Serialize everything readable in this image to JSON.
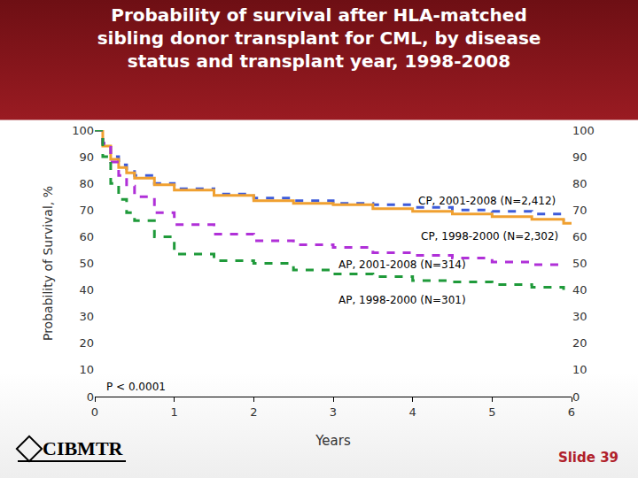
{
  "chart_data": {
    "type": "line",
    "title": "Probability of survival after HLA-matched\nsibling donor transplant for CML, by disease\nstatus and transplant year, 1998-2008",
    "x_label": "Years",
    "y_label": "Probability of Survival, %",
    "x": [
      0,
      0.1,
      0.2,
      0.3,
      0.4,
      0.5,
      0.75,
      1,
      1.5,
      2,
      2.5,
      3,
      3.5,
      4,
      4.5,
      5,
      5.5,
      5.9,
      6
    ],
    "series": [
      {
        "name": "CP, 2001-2008 (N=2,412)",
        "color": "#3d5bd9",
        "line_style": "dash",
        "values": [
          100,
          95,
          90,
          87,
          85,
          83,
          80,
          78,
          76,
          74.5,
          73.5,
          72.5,
          72,
          71,
          70,
          69.5,
          68.5,
          66,
          null
        ]
      },
      {
        "name": "CP, 1998-2000 (N=2,302)",
        "color": "#f0a030",
        "line_style": "solid",
        "values": [
          100,
          94,
          89,
          86,
          84,
          82,
          79.5,
          77.5,
          75.5,
          73.5,
          72.5,
          72,
          70.5,
          69.5,
          68.5,
          67.5,
          66.5,
          65,
          64.5
        ]
      },
      {
        "name": "AP, 2001-2008 (N=314)",
        "color": "#b030d8",
        "line_style": "dash",
        "values": [
          100,
          95,
          88,
          83,
          79,
          75,
          69,
          64.5,
          61,
          58.5,
          57,
          56,
          54,
          53,
          52,
          50.5,
          49.5,
          49,
          null
        ]
      },
      {
        "name": "AP, 1998-2000 (N=301)",
        "color": "#1f9a3a",
        "line_style": "dash",
        "values": [
          100,
          90,
          80,
          74,
          69,
          66,
          60,
          53.5,
          51,
          50,
          47.5,
          46,
          45,
          43.5,
          43,
          42,
          41,
          40,
          null
        ]
      }
    ],
    "xlim": [
      0,
      6
    ],
    "xticks": [
      0,
      1,
      2,
      3,
      4,
      5,
      6
    ],
    "ylim": [
      0,
      100
    ],
    "yticks": [
      0,
      10,
      20,
      30,
      40,
      50,
      60,
      70,
      80,
      90,
      100
    ],
    "y2lim": [
      0,
      100
    ],
    "y2ticks": [
      0,
      10,
      20,
      30,
      40,
      50,
      60,
      70,
      80,
      90,
      100
    ],
    "grid": false,
    "annotations": [
      "P < 0.0001"
    ]
  },
  "footer": {
    "logo": "CIBMTR",
    "slide": "Slide 39"
  }
}
